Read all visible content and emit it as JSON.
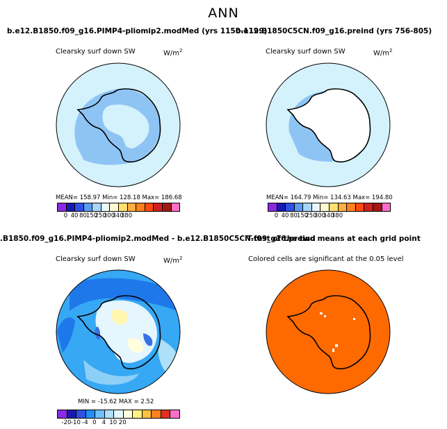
{
  "title": "ANN",
  "panels": [
    {
      "title": "b.e12.B1850.f09_g16.PIMP4-pliomip2.modMed (yrs 1150-1199)",
      "variable": "Clearsky surf down SW",
      "units": "W/m",
      "units_exp": "2",
      "stats": "MEAN= 158.97   Min= 128.18   Max= 186.68",
      "ticks": [
        "0",
        "40",
        "80",
        "150",
        "250",
        "300",
        "340",
        "380"
      ]
    },
    {
      "title": "b.e12.B1850C5CN.f09_g16.preind (yrs 756-805)",
      "variable": "Clearsky surf down SW",
      "units": "W/m",
      "units_exp": "2",
      "stats": "MEAN= 164.79   Min= 134.63   Max= 194.80",
      "ticks": [
        "0",
        "40",
        "80",
        "150",
        "250",
        "300",
        "340",
        "380"
      ]
    },
    {
      "title": ".B1850.f09_g16.PIMP4-pliomip2.modMed - b.e12.B1850C5CN.f09_g16.preind",
      "variable": "Clearsky surf down SW",
      "units": "W/m",
      "units_exp": "2",
      "stats": "MIN = -15.62  MAX =   2.52",
      "ticks": [
        "-20",
        "-10",
        "-4",
        "0",
        "4",
        "10",
        "20"
      ]
    },
    {
      "title": "T-test of the two means at each grid point",
      "variable": "Colored cells are significant at the 0.05 level"
    }
  ],
  "colors": {
    "abs_scale": [
      "#8a2be2",
      "#1a1ab0",
      "#3050e0",
      "#5a9cf0",
      "#a6d6fa",
      "#e8f8ff",
      "#fffad0",
      "#ffe070",
      "#ffb040",
      "#ff8020",
      "#ff4a10",
      "#d02020",
      "#a01818",
      "#ff6ec7"
    ],
    "diff_scale": [
      "#8a2be2",
      "#1a1ab0",
      "#3050e0",
      "#1e90ff",
      "#6ec0fa",
      "#aee0fa",
      "#e6f6ff",
      "#ffffe0",
      "#fff080",
      "#ffc040",
      "#ff8020",
      "#e03020",
      "#ff6ec7"
    ],
    "significance": "#ff6a00",
    "ocean_light": "#d4f2fc",
    "ocean_blue": "#8ec4f4",
    "diff_ocean": "#36a8f4"
  }
}
